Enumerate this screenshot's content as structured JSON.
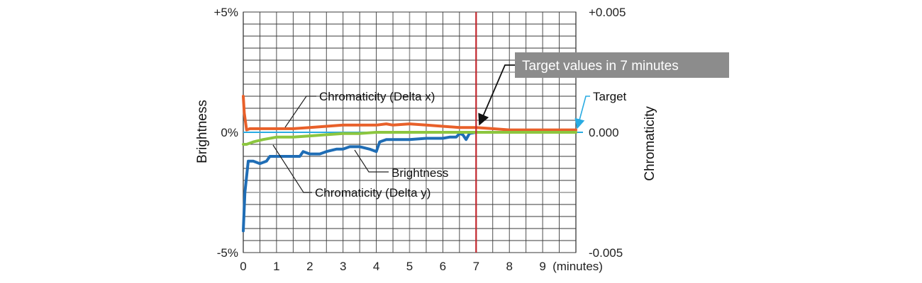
{
  "chart_data": {
    "type": "line",
    "xlabel": "",
    "x_unit_label": "(minutes)",
    "x_ticks": [
      "0",
      "1",
      "2",
      "3",
      "4",
      "5",
      "6",
      "7",
      "8",
      "9"
    ],
    "xlim": [
      0,
      10
    ],
    "y_left_label": "Brightness",
    "y_left_ticks": [
      "+5%",
      "0%",
      "-5%"
    ],
    "ylim_left": [
      -5,
      5
    ],
    "y_right_label": "Chromaticity",
    "y_right_ticks": [
      "+0.005",
      "0.000",
      "-0.005"
    ],
    "ylim_right": [
      -0.005,
      0.005
    ],
    "grid": true,
    "target_time": 7,
    "colors": {
      "chromaticity_x": "#e8602a",
      "chromaticity_y": "#8cc63f",
      "brightness": "#1f6db5",
      "target": "#29abe2",
      "marker": "#c1272d",
      "callout_bg": "#8c8c8c"
    },
    "series": [
      {
        "name": "Chromaticity (Delta x)",
        "key": "chromaticity_x",
        "axis": "left",
        "x": [
          0,
          0.03,
          0.1,
          0.2,
          0.5,
          1,
          1.5,
          2,
          2.5,
          3,
          3.5,
          4,
          4.3,
          4.5,
          5,
          5.5,
          6,
          6.5,
          7,
          7.5,
          8,
          8.5,
          9,
          9.5,
          10
        ],
        "y": [
          1.5,
          0.8,
          0.1,
          0.15,
          0.15,
          0.15,
          0.15,
          0.2,
          0.25,
          0.3,
          0.3,
          0.3,
          0.35,
          0.3,
          0.35,
          0.3,
          0.25,
          0.2,
          0.2,
          0.15,
          0.1,
          0.1,
          0.1,
          0.1,
          0.1
        ]
      },
      {
        "name": "Chromaticity (Delta y)",
        "key": "chromaticity_y",
        "axis": "left",
        "x": [
          0,
          0.1,
          0.3,
          0.6,
          1,
          1.5,
          2,
          2.5,
          3,
          3.5,
          4,
          4.5,
          5,
          5.5,
          6,
          6.5,
          7,
          7.5,
          8,
          9,
          10
        ],
        "y": [
          -0.5,
          -0.5,
          -0.4,
          -0.3,
          -0.2,
          -0.2,
          -0.15,
          -0.1,
          -0.05,
          -0.05,
          0,
          0,
          0,
          0,
          0,
          0,
          0,
          0,
          0,
          0,
          0
        ]
      },
      {
        "name": "Brightness",
        "key": "brightness",
        "axis": "left",
        "x": [
          0,
          0.05,
          0.15,
          0.3,
          0.5,
          0.7,
          0.8,
          1,
          1.2,
          1.5,
          1.7,
          1.8,
          2,
          2.3,
          2.5,
          2.8,
          3,
          3.2,
          3.5,
          3.8,
          4,
          4.1,
          4.3,
          4.6,
          5,
          5.5,
          6,
          6.2,
          6.4,
          6.5,
          6.6,
          6.7,
          6.8,
          7,
          7.5,
          8,
          9,
          10
        ],
        "y": [
          -4.1,
          -2.5,
          -1.2,
          -1.2,
          -1.3,
          -1.2,
          -1.0,
          -1.0,
          -1.0,
          -1.0,
          -1.0,
          -0.8,
          -0.9,
          -0.9,
          -0.8,
          -0.7,
          -0.7,
          -0.6,
          -0.6,
          -0.7,
          -0.8,
          -0.4,
          -0.3,
          -0.3,
          -0.3,
          -0.25,
          -0.25,
          -0.2,
          -0.2,
          -0.05,
          -0.1,
          -0.3,
          -0.05,
          0,
          0,
          0,
          0,
          0
        ]
      }
    ],
    "annotations": {
      "callout": "Target values in 7 minutes",
      "target": "Target",
      "chromaticity_x_label": "Chromaticity (Delta x)",
      "brightness_label": "Brightness",
      "chromaticity_y_label": "Chromaticity (Delta y)"
    }
  }
}
